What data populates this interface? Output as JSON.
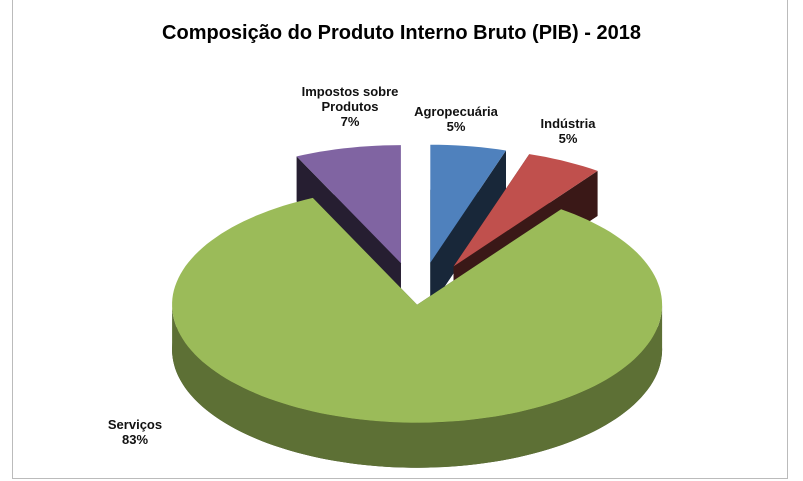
{
  "chart_data": {
    "type": "pie3d",
    "title": "Composição do Produto Interno Bruto (PIB) - 2018",
    "categories": [
      "Agropecuária",
      "Indústria",
      "Serviços",
      "Impostos sobre Produtos"
    ],
    "values": [
      5,
      5,
      83,
      7
    ],
    "value_labels": [
      "5%",
      "5%",
      "83%",
      "7%"
    ],
    "colors": [
      "#4f81bd",
      "#c0504d",
      "#9bbb59",
      "#8064a2"
    ]
  }
}
